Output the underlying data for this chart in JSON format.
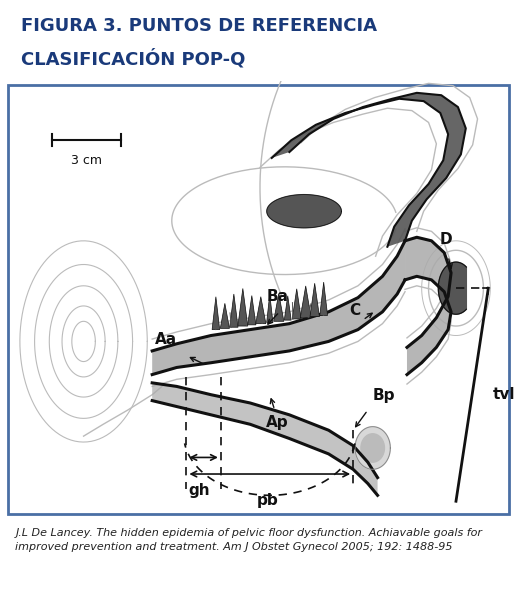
{
  "title_line1": "FIGURA 3. PUNTOS DE REFERENCIA",
  "title_line2": "CLASIFICACIÓN POP-Q",
  "title_bg_color": "#c8cfe0",
  "title_text_color": "#1a3a7a",
  "title_fontsize": 13,
  "border_color": "#4a6fa5",
  "caption": "J.L De Lancey. The hidden epidemia of pelvic floor dysfunction. Achiavable goals for\nimproved prevention and treatment. Am J Obstet Gynecol 2005; 192: 1488-95",
  "caption_fontsize": 8,
  "scale_label": "3 cm"
}
